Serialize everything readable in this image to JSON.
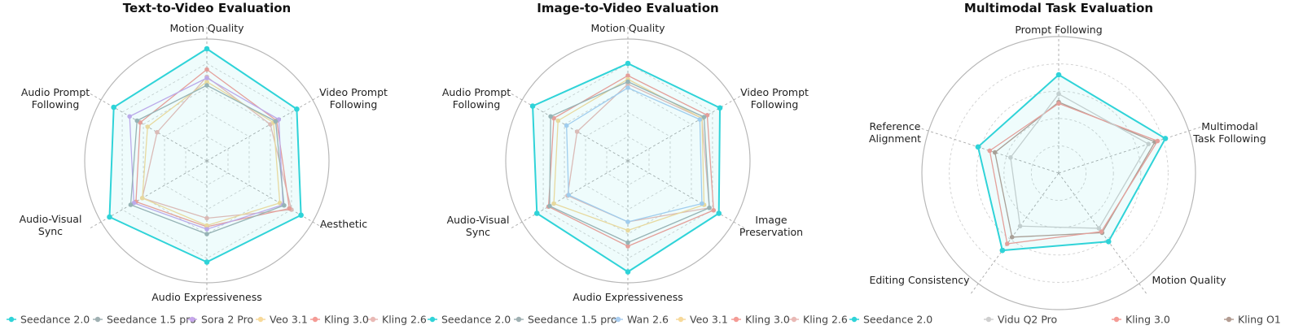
{
  "chart_data": [
    {
      "type": "radar",
      "title": "Text-to-Video Evaluation",
      "axes": [
        "Motion Quality",
        "Video Prompt Following",
        "Aesthetic",
        "Audio Expressiveness",
        "Audio-Visual Sync",
        "Audio Prompt Following"
      ],
      "range": [
        0,
        1
      ],
      "grid": true,
      "legend_position": "bottom",
      "series": [
        {
          "name": "Seedance 2.0",
          "color": "#2fd3d8",
          "values": [
            0.92,
            0.85,
            0.89,
            0.83,
            0.92,
            0.88
          ]
        },
        {
          "name": "Seedance 1.5 pro",
          "color": "#9fb0b2",
          "values": [
            0.62,
            0.65,
            0.73,
            0.6,
            0.72,
            0.66
          ]
        },
        {
          "name": "Sora 2 Pro",
          "color": "#c7a7ec",
          "values": [
            0.68,
            0.68,
            0.72,
            0.56,
            0.69,
            0.73
          ]
        },
        {
          "name": "Veo 3.1",
          "color": "#f7d99a",
          "values": [
            0.65,
            0.63,
            0.69,
            0.53,
            0.61,
            0.56
          ]
        },
        {
          "name": "Kling 3.0",
          "color": "#f49b95",
          "values": [
            0.75,
            0.66,
            0.78,
            0.54,
            0.67,
            0.63
          ]
        },
        {
          "name": "Kling 2.6",
          "color": "#e9b9b5",
          "values": [
            0.69,
            0.6,
            0.8,
            0.47,
            0.61,
            0.47
          ]
        }
      ]
    },
    {
      "type": "radar",
      "title": "Image-to-Video Evaluation",
      "axes": [
        "Motion Quality",
        "Video Prompt Following",
        "Image Preservation",
        "Audio Expressiveness",
        "Audio-Visual Sync",
        "Audio Prompt Following"
      ],
      "range": [
        0,
        1
      ],
      "grid": true,
      "legend_position": "bottom",
      "series": [
        {
          "name": "Seedance 2.0",
          "color": "#2fd3d8",
          "values": [
            0.8,
            0.87,
            0.86,
            0.91,
            0.86,
            0.9
          ]
        },
        {
          "name": "Seedance 1.5 pro",
          "color": "#9fb0b2",
          "values": [
            0.65,
            0.72,
            0.77,
            0.67,
            0.74,
            0.73
          ]
        },
        {
          "name": "Wan 2.6",
          "color": "#a9cdf0",
          "values": [
            0.6,
            0.68,
            0.7,
            0.5,
            0.56,
            0.58
          ]
        },
        {
          "name": "Veo 3.1",
          "color": "#f7d99a",
          "values": [
            0.67,
            0.7,
            0.72,
            0.57,
            0.7,
            0.66
          ]
        },
        {
          "name": "Kling 3.0",
          "color": "#f49b95",
          "values": [
            0.7,
            0.75,
            0.81,
            0.7,
            0.75,
            0.7
          ]
        },
        {
          "name": "Kling 2.6",
          "color": "#e9b9b5",
          "values": [
            0.63,
            0.7,
            0.77,
            0.5,
            0.57,
            0.48
          ]
        }
      ]
    },
    {
      "type": "radar",
      "title": "Multimodal Task Evaluation",
      "axes": [
        "Prompt Following",
        "Multimodal Task Following",
        "Motion Quality",
        "Editing Consistency",
        "Reference Alignment"
      ],
      "range": [
        0,
        1
      ],
      "grid": true,
      "legend_position": "bottom",
      "series": [
        {
          "name": "Seedance 2.0",
          "color": "#2fd3d8",
          "values": [
            0.72,
            0.82,
            0.62,
            0.7,
            0.62
          ]
        },
        {
          "name": "Vidu Q2 Pro",
          "color": "#cfcfcf",
          "values": [
            0.58,
            0.69,
            0.5,
            0.48,
            0.37
          ]
        },
        {
          "name": "Kling 3.0",
          "color": "#f49b95",
          "values": [
            0.51,
            0.76,
            0.53,
            0.64,
            0.53
          ]
        },
        {
          "name": "Kling O1",
          "color": "#b39c92",
          "values": [
            0.52,
            0.74,
            0.54,
            0.58,
            0.49
          ]
        }
      ]
    }
  ],
  "legends": [
    [
      "Seedance 2.0",
      "Seedance 1.5 pro",
      "Sora 2 Pro",
      "Veo 3.1",
      "Kling 3.0",
      "Kling 2.6"
    ],
    [
      "Seedance 2.0",
      "Seedance 1.5 pro",
      "Wan 2.6",
      "Veo 3.1",
      "Kling 3.0",
      "Kling 2.6"
    ],
    [
      "Seedance 2.0",
      "Vidu Q2 Pro",
      "Kling 3.0",
      "Kling O1"
    ]
  ]
}
